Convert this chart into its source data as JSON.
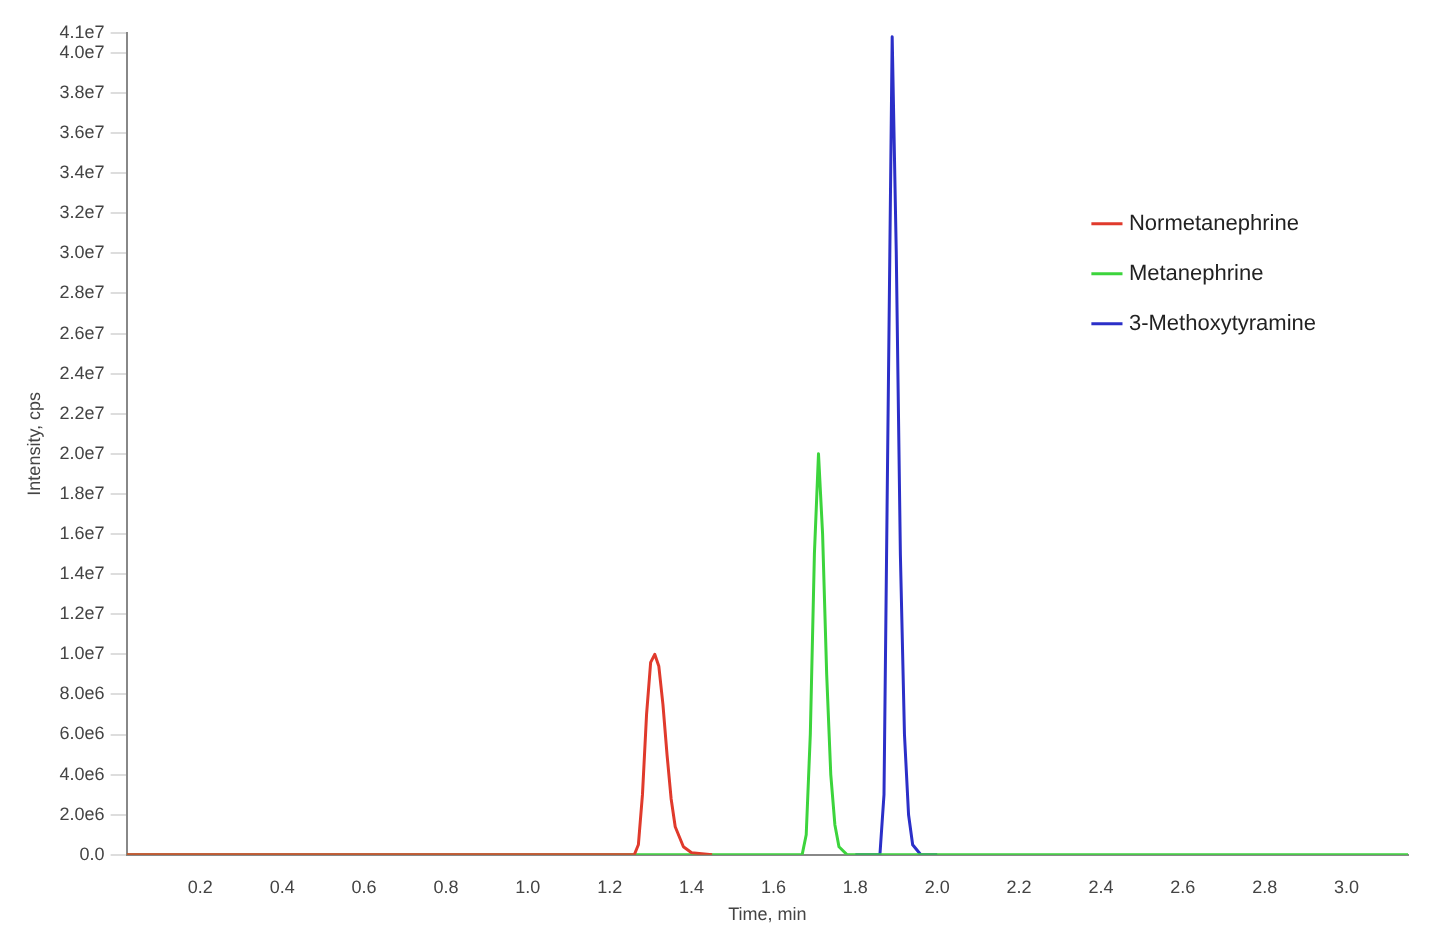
{
  "chart_data": {
    "type": "line",
    "xlabel": "Time, min",
    "ylabel": "Intensity, cps",
    "xlim": [
      0.02,
      3.15
    ],
    "xticks": [
      0.2,
      0.4,
      0.6,
      0.8,
      {
        "value": 1,
        "label": "1.0"
      },
      1.2,
      1.4,
      1.6,
      1.8,
      {
        "value": 2,
        "label": "2.0"
      },
      2.2,
      2.4,
      2.6,
      2.8,
      {
        "value": 3,
        "label": "3.0"
      }
    ],
    "ylim": [
      0,
      41000000
    ],
    "yticks": [
      {
        "value": 0,
        "label": "0.0"
      },
      {
        "value": 2000000,
        "label": "2.0e6"
      },
      {
        "value": 4000000,
        "label": "4.0e6"
      },
      {
        "value": 6000000,
        "label": "6.0e6"
      },
      {
        "value": 8000000,
        "label": "8.0e6"
      },
      {
        "value": 10000000,
        "label": "1.0e7"
      },
      {
        "value": 12000000,
        "label": "1.2e7"
      },
      {
        "value": 14000000,
        "label": "1.4e7"
      },
      {
        "value": 16000000,
        "label": "1.6e7"
      },
      {
        "value": 18000000,
        "label": "1.8e7"
      },
      {
        "value": 20000000,
        "label": "2.0e7"
      },
      {
        "value": 22000000,
        "label": "2.2e7"
      },
      {
        "value": 24000000,
        "label": "2.4e7"
      },
      {
        "value": 26000000,
        "label": "2.6e7"
      },
      {
        "value": 28000000,
        "label": "2.8e7"
      },
      {
        "value": 30000000,
        "label": "3.0e7"
      },
      {
        "value": 32000000,
        "label": "3.2e7"
      },
      {
        "value": 34000000,
        "label": "3.4e7"
      },
      {
        "value": 36000000,
        "label": "3.6e7"
      },
      {
        "value": 38000000,
        "label": "3.8e7"
      },
      {
        "value": 40000000,
        "label": "4.0e7"
      },
      {
        "value": 41000000,
        "label": "4.1e7"
      }
    ],
    "grid": false,
    "legend": "top right",
    "marker": "none",
    "line_style": "solid",
    "series": [
      {
        "name": "Normetanephrine",
        "color": "#e03a2c",
        "x": [
          0.02,
          1.26,
          1.27,
          1.28,
          1.29,
          1.3,
          1.31,
          1.32,
          1.33,
          1.34,
          1.35,
          1.36,
          1.38,
          1.4,
          1.45
        ],
        "values": [
          0,
          0,
          500000,
          3000000,
          7000000,
          9600000,
          10000000,
          9400000,
          7500000,
          5000000,
          2800000,
          1400000,
          400000,
          100000,
          0
        ]
      },
      {
        "name": "Metanephrine",
        "color": "#3cd43c",
        "x": [
          0.02,
          1.67,
          1.68,
          1.69,
          1.7,
          1.71,
          1.72,
          1.73,
          1.74,
          1.75,
          1.76,
          1.78,
          3.15
        ],
        "values": [
          0,
          0,
          1000000,
          6000000,
          15000000,
          20000000,
          16000000,
          9000000,
          4000000,
          1500000,
          400000,
          0,
          0
        ]
      },
      {
        "name": "3-Methoxytyramine",
        "color": "#2b2fc8",
        "x": [
          1.8,
          1.86,
          1.87,
          1.88,
          1.89,
          1.9,
          1.91,
          1.92,
          1.93,
          1.94,
          1.96,
          2.0
        ],
        "values": [
          0,
          0,
          3000000,
          22000000,
          40800000,
          30000000,
          15000000,
          6000000,
          2000000,
          500000,
          0,
          0
        ]
      }
    ]
  }
}
